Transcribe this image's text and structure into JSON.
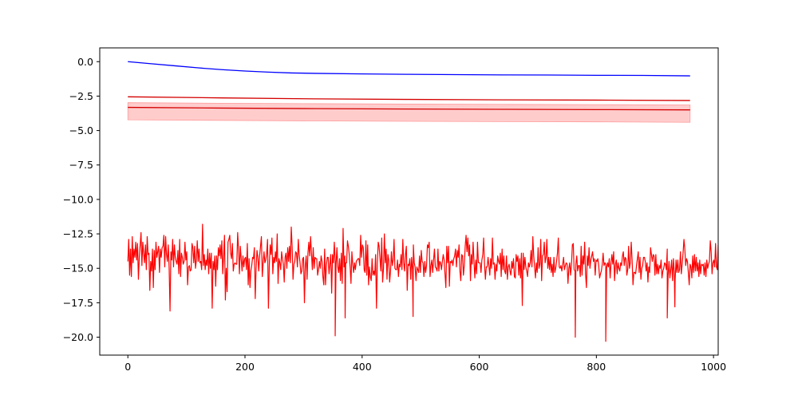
{
  "chart_data": {
    "type": "line",
    "title": "",
    "xlabel": "",
    "ylabel": "",
    "xlim": [
      -48,
      1008
    ],
    "ylim": [
      -21.3,
      1.0
    ],
    "x_ticks": [
      0,
      200,
      400,
      600,
      800,
      1000
    ],
    "x_tick_labels": [
      "0",
      "200",
      "400",
      "600",
      "800",
      "1000"
    ],
    "y_ticks": [
      0.0,
      -2.5,
      -5.0,
      -7.5,
      -10.0,
      -12.5,
      -15.0,
      -17.5,
      -20.0
    ],
    "y_tick_labels": [
      "0.0",
      "−2.5",
      "−5.0",
      "−7.5",
      "−10.0",
      "−12.5",
      "−15.0",
      "−17.5",
      "−20.0"
    ],
    "grid": false,
    "legend": "none",
    "series": [
      {
        "color": "#0000ff",
        "style": "line",
        "x": [
          0,
          40,
          80,
          120,
          160,
          200,
          240,
          280,
          320,
          400,
          480,
          560,
          640,
          720,
          800,
          880,
          960
        ],
        "y": [
          0.0,
          -0.15,
          -0.3,
          -0.45,
          -0.58,
          -0.68,
          -0.76,
          -0.82,
          -0.85,
          -0.89,
          -0.92,
          -0.94,
          -0.96,
          -0.97,
          -0.99,
          -1.0,
          -1.03
        ]
      },
      {
        "color": "#d40000",
        "style": "line",
        "x": [
          0,
          160,
          320,
          480,
          640,
          800,
          960
        ],
        "y": [
          -2.55,
          -2.63,
          -2.7,
          -2.74,
          -2.77,
          -2.79,
          -2.82
        ]
      },
      {
        "color": "#d40000",
        "style": "line-with-band",
        "band_color": "#ff9a9a",
        "x": [
          0,
          160,
          320,
          480,
          640,
          800,
          960
        ],
        "y": [
          -3.32,
          -3.37,
          -3.41,
          -3.44,
          -3.46,
          -3.48,
          -3.5
        ],
        "lower": [
          -4.22,
          -4.26,
          -4.3,
          -4.33,
          -4.35,
          -4.37,
          -4.4
        ],
        "upper": [
          -2.98,
          -3.02,
          -3.05,
          -3.08,
          -3.1,
          -3.12,
          -3.14
        ]
      },
      {
        "color": "#ff0000",
        "style": "noisy-line",
        "x_start": 0,
        "x_step": 1.5,
        "values": [
          -14.5,
          -12.9,
          -15.5,
          -13.6,
          -15.6,
          -12.7,
          -14.6,
          -13.6,
          -14.2,
          -13.1,
          -14.4,
          -13.2,
          -15.8,
          -14.2,
          -13.3,
          -12.4,
          -14.8,
          -13.1,
          -13.9,
          -14.6,
          -13.3,
          -15.1,
          -12.7,
          -14.0,
          -13.9,
          -16.6,
          -14.5,
          -15.2,
          -13.6,
          -16.4,
          -13.7,
          -15.1,
          -13.1,
          -14.2,
          -13.8,
          -13.4,
          -15.3,
          -13.6,
          -14.2,
          -13.5,
          -13.4,
          -12.6,
          -14.9,
          -12.7,
          -14.0,
          -14.5,
          -13.3,
          -15.0,
          -18.1,
          -13.8,
          -14.4,
          -12.9,
          -14.9,
          -13.3,
          -14.2,
          -14.5,
          -14.7,
          -13.7,
          -15.4,
          -12.9,
          -15.6,
          -13.9,
          -14.2,
          -14.7,
          -14.5,
          -13.1,
          -14.4,
          -13.8,
          -16.2,
          -14.9,
          -14.8,
          -15.2,
          -15.1,
          -13.2,
          -13.5,
          -14.6,
          -13.4,
          -15.0,
          -14.4,
          -13.0,
          -14.5,
          -13.6,
          -14.6,
          -14.5,
          -15.1,
          -11.8,
          -14.8,
          -14.0,
          -15.1,
          -14.4,
          -14.8,
          -13.6,
          -15.4,
          -13.9,
          -15.0,
          -13.9,
          -17.9,
          -14.5,
          -15.1,
          -14.1,
          -16.3,
          -14.1,
          -15.1,
          -13.5,
          -14.1,
          -13.3,
          -14.3,
          -13.0,
          -15.4,
          -14.1,
          -12.6,
          -17.3,
          -15.0,
          -16.7,
          -13.1,
          -12.9,
          -12.6,
          -13.9,
          -14.3,
          -13.2,
          -15.2,
          -14.7,
          -14.6,
          -14.7,
          -14.7,
          -12.4,
          -13.6,
          -15.4,
          -13.4,
          -14.3,
          -15.2,
          -14.1,
          -14.9,
          -14.3,
          -14.2,
          -15.1,
          -13.2,
          -16.2,
          -14.3,
          -16.4,
          -15.2,
          -14.8,
          -14.2,
          -14.3,
          -13.5,
          -17.2,
          -15.0,
          -13.7,
          -14.2,
          -15.2,
          -14.1,
          -13.4,
          -12.7,
          -15.6,
          -14.6,
          -13.8,
          -14.6,
          -14.4,
          -13.9,
          -12.9,
          -17.9,
          -14.8,
          -13.3,
          -14.0,
          -12.8,
          -15.4,
          -14.2,
          -14.6,
          -13.8,
          -14.5,
          -12.5,
          -16.1,
          -14.3,
          -14.6,
          -15.1,
          -13.8,
          -14.3,
          -14.7,
          -16.0,
          -14.2,
          -13.9,
          -15.0,
          -13.5,
          -14.5,
          -13.4,
          -14.6,
          -12.0,
          -13.4,
          -15.8,
          -14.7,
          -14.5,
          -13.8,
          -13.9,
          -14.9,
          -12.9,
          -14.0,
          -14.6,
          -15.4,
          -15.2,
          -14.3,
          -14.2,
          -17.5,
          -14.8,
          -14.1,
          -15.8,
          -13.9,
          -13.1,
          -14.1,
          -12.7,
          -13.9,
          -15.1,
          -13.5,
          -15.0,
          -14.2,
          -14.3,
          -14.3,
          -15.5,
          -15.1,
          -14.5,
          -15.0,
          -14.1,
          -14.5,
          -15.6,
          -16.2,
          -13.6,
          -16.2,
          -14.8,
          -14.2,
          -14.2,
          -15.4,
          -14.7,
          -14.0,
          -16.8,
          -14.0,
          -14.6,
          -13.1,
          -14.5,
          -14.7,
          -13.5,
          -14.9,
          -15.3,
          -14.3,
          -15.9,
          -13.9,
          -16.1,
          -12.1,
          -14.9,
          -14.1,
          -14.6,
          -14.6,
          -13.0,
          -13.4,
          -14.0,
          -14.9,
          -16.1,
          -13.8,
          -14.7,
          -15.3,
          -14.6,
          -15.1,
          -14.5,
          -14.4,
          -14.3,
          -14.3,
          -14.8,
          -12.6,
          -14.2,
          -13.3,
          -13.5,
          -15.1,
          -15.3,
          -13.0,
          -15.5,
          -13.3,
          -16.2,
          -14.9,
          -15.6,
          -15.9,
          -14.3,
          -15.5,
          -15.2,
          -15.5,
          -14.0,
          -17.9,
          -14.6,
          -13.1,
          -13.4,
          -14.3,
          -15.2,
          -12.8,
          -16.0,
          -15.0,
          -12.5,
          -14.6,
          -13.6,
          -15.8,
          -14.0,
          -14.4,
          -16.0,
          -15.2,
          -13.8,
          -14.8,
          -14.4,
          -12.9,
          -15.0,
          -15.1,
          -15.1,
          -14.4,
          -15.6,
          -14.7,
          -14.9,
          -14.0,
          -15.1,
          -12.9,
          -14.6,
          -15.2,
          -14.0,
          -13.4,
          -16.6,
          -14.7,
          -14.8,
          -14.3,
          -15.8,
          -14.2,
          -15.1,
          -13.3,
          -14.6,
          -14.9,
          -15.9,
          -14.9,
          -15.1,
          -15.3,
          -14.1,
          -15.3,
          -13.7,
          -14.5,
          -14.6,
          -15.6,
          -14.5,
          -15.3,
          -14.8,
          -13.3,
          -13.5,
          -13.1,
          -15.6,
          -14.8,
          -14.4,
          -15.3,
          -14.4,
          -13.6,
          -14.9,
          -15.0,
          -15.2,
          -13.6,
          -15.2,
          -14.5,
          -14.6,
          -15.1,
          -14.5,
          -14.0,
          -14.4,
          -15.4,
          -16.4,
          -13.4,
          -14.6,
          -13.4,
          -16.3,
          -14.5,
          -14.6,
          -14.4,
          -14.8,
          -14.3,
          -14.1,
          -13.6,
          -14.9,
          -13.7,
          -14.2,
          -13.3,
          -15.2,
          -15.9,
          -14.0,
          -14.1,
          -15.5,
          -14.8,
          -13.4,
          -12.6,
          -13.8,
          -12.8,
          -14.1,
          -13.3,
          -15.9,
          -14.0,
          -14.7,
          -13.1,
          -14.5,
          -15.7,
          -14.4,
          -15.4,
          -13.1,
          -14.6,
          -14.6,
          -14.6,
          -15.3,
          -14.4,
          -14.0,
          -12.8,
          -14.7,
          -15.8,
          -14.9,
          -14.9,
          -14.2,
          -14.8,
          -15.5,
          -14.3,
          -15.0,
          -12.8,
          -14.7,
          -14.6,
          -15.8,
          -14.7,
          -15.2,
          -14.1,
          -14.5,
          -14.7,
          -13.9,
          -15.6,
          -13.6,
          -15.1,
          -14.1,
          -15.2,
          -15.4,
          -14.1,
          -15.8,
          -14.9,
          -14.7,
          -15.2,
          -15.5,
          -14.5,
          -15.0,
          -14.3,
          -15.6,
          -15.7,
          -14.0,
          -14.5,
          -14.1,
          -15.5,
          -14.3,
          -15.7,
          -13.9,
          -17.7,
          -13.9,
          -15.1,
          -14.2,
          -14.9,
          -15.2,
          -15.6,
          -14.6,
          -14.9,
          -14.6,
          -13.7,
          -14.9,
          -12.7,
          -14.1,
          -14.9,
          -15.7,
          -14.6,
          -15.3,
          -13.5,
          -15.0,
          -14.7,
          -12.9,
          -15.9,
          -14.1,
          -14.0,
          -13.1,
          -14.6,
          -14.2,
          -12.9,
          -15.0,
          -14.2,
          -15.1,
          -14.2,
          -15.3,
          -14.7,
          -15.6,
          -14.2,
          -15.3,
          -15.0,
          -14.5,
          -13.9,
          -12.8,
          -14.9,
          -15.0,
          -14.8,
          -15.2,
          -14.7,
          -14.2,
          -15.1,
          -14.8,
          -14.6,
          -14.7,
          -16.1,
          -15.0,
          -14.6,
          -15.5,
          -14.7,
          -13.3,
          -13.2,
          -15.1,
          -15.2,
          -14.7,
          -14.1,
          -15.2,
          -14.8,
          -14.8,
          -15.6,
          -13.4,
          -15.5,
          -14.1,
          -14.7,
          -13.1,
          -15.4,
          -16.4,
          -14.1,
          -14.8,
          -13.5,
          -15.0,
          -14.4,
          -14.1,
          -13.8,
          -14.5,
          -14.3,
          -15.5,
          -14.4,
          -14.5,
          -14.3,
          -14.8,
          -15.7,
          -15.4,
          -15.2,
          -14.7,
          -13.9,
          -14.8,
          -14.6,
          -14.7,
          -15.0,
          -14.6,
          -14.9,
          -14.3,
          -15.7,
          -14.6,
          -14.0,
          -14.7,
          -13.8,
          -15.9,
          -14.7,
          -14.4,
          -15.4,
          -14.6,
          -15.0,
          -15.2,
          -14.6,
          -14.8,
          -14.1,
          -13.8,
          -14.8,
          -14.2,
          -14.3,
          -15.5,
          -15.1,
          -13.4,
          -15.0,
          -14.6,
          -13.1,
          -14.4,
          -16.2,
          -15.3,
          -15.3,
          -15.4,
          -14.8,
          -14.3,
          -13.8,
          -15.3,
          -14.2,
          -15.8,
          -15.0,
          -14.8,
          -14.2,
          -14.2,
          -14.5,
          -15.2,
          -14.6,
          -16.0,
          -14.9,
          -15.3,
          -13.5,
          -14.0,
          -14.5,
          -14.0,
          -14.1,
          -15.5,
          -14.0,
          -15.4,
          -14.7,
          -15.4,
          -14.8,
          -15.0,
          -14.4,
          -15.7,
          -15.2,
          -15.0,
          -14.6,
          -14.7,
          -15.1,
          -13.6,
          -15.5,
          -14.5,
          -15.7,
          -15.1,
          -14.4,
          -15.9,
          -14.3,
          -15.3,
          -15.8,
          -14.4,
          -15.3,
          -14.4,
          -15.3,
          -15.1,
          -13.8,
          -15.4,
          -14.7,
          -13.9,
          -12.9,
          -13.6,
          -14.8,
          -14.3,
          -14.5,
          -15.3,
          -16.2,
          -14.7,
          -14.9,
          -15.7,
          -14.1,
          -15.3,
          -14.0,
          -15.2,
          -14.2,
          -15.2,
          -14.6,
          -15.6,
          -14.4,
          -15.4,
          -14.7,
          -14.8,
          -14.7,
          -15.5,
          -14.6,
          -15.6,
          -14.4,
          -15.0,
          -14.7,
          -14.5,
          -13.0,
          -13.8,
          -15.4,
          -14.6,
          -14.4,
          -14.9,
          -13.2,
          -14.9,
          -15.1,
          -13.3,
          -15.8,
          -13.9,
          -14.7,
          -15.1,
          -14.9,
          -15.5,
          -15.2,
          -14.7,
          -14.6,
          -14.6,
          -15.2,
          -15.0,
          -14.7,
          -15.1,
          -14.7,
          -14.7,
          -14.0,
          -15.9,
          -14.5,
          -14.2,
          -14.3,
          -15.2,
          -13.9,
          -15.2,
          -15.6,
          -14.1,
          -15.6,
          -14.3,
          -14.9,
          -15.2,
          -14.8,
          -14.4,
          -14.2,
          -15.8,
          -13.7,
          -14.9,
          -13.9,
          -15.2,
          -15.5,
          -15.3,
          -15.1,
          -14.1,
          -14.3,
          -14.8,
          -15.3,
          -15.2,
          -15.9,
          -14.6,
          -15.5,
          -15.6,
          -13.9,
          -13.8,
          -15.7,
          -14.6,
          -15.3,
          -14.5,
          -15.8,
          -14.5,
          -14.4,
          -14.3,
          -14.8,
          -15.2,
          -14.2,
          -15.2,
          -14.9,
          -16.0,
          -13.8,
          -15.1,
          -14.8,
          -15.0,
          -14.8,
          -15.0,
          -16.0,
          -15.7,
          -14.3,
          -15.5,
          -14.2,
          -15.3,
          -13.9,
          -14.0,
          -15.6,
          -13.9,
          -15.0,
          -13.5,
          -14.5,
          -15.5,
          -14.8,
          -15.0,
          -14.9,
          -14.6,
          -15.7,
          -16.7,
          -13.6,
          -14.4,
          -14.0,
          -15.1,
          -15.4,
          -16.5,
          -14.8,
          -14.9,
          -14.0,
          -14.8,
          -15.3,
          -13.8,
          -14.1,
          -16.0,
          -14.2,
          -14.9,
          -14.9,
          -14.2,
          -15.0,
          -13.4,
          -15.4,
          -15.7,
          -15.3,
          -14.8,
          -15.2,
          -14.0,
          -15.7,
          -13.5,
          -14.0,
          -13.8,
          -14.9,
          -16.5,
          -14.8,
          -15.1,
          -13.9,
          -14.7,
          -14.1,
          -15.8,
          -14.7,
          -14.7,
          -14.9,
          -14.2,
          -14.1,
          -15.7,
          -14.4,
          -14.2,
          -15.5,
          -14.8,
          -15.4,
          -14.9,
          -15.2,
          -14.7,
          -14.5,
          -14.6,
          -14.1,
          -14.2,
          -14.7,
          -13.8,
          -13.7,
          -14.0,
          -15.3,
          -14.9,
          -15.1,
          -14.4,
          -14.8,
          -14.6,
          -14.7,
          -14.6,
          -15.2,
          -14.8,
          -13.5,
          -15.2,
          -14.3,
          -15.7,
          -14.7,
          -15.0,
          -16.6,
          -15.0,
          -14.6,
          -14.9,
          -14.4,
          -13.6,
          -14.0,
          -15.2,
          -15.2,
          -14.5,
          -14.6,
          -14.8,
          -14.8,
          -13.5,
          -15.7,
          -15.3,
          -15.0,
          -14.9,
          -14.1,
          -13.5,
          -15.7,
          -14.7,
          -16.0,
          -16.2,
          -15.0,
          -15.9,
          -16.4,
          -14.2,
          -15.0,
          -15.5,
          -14.9,
          -13.8,
          -14.2,
          -13.1,
          -13.7,
          -15.0,
          -15.2,
          -15.1,
          -14.8,
          -14.8,
          -14.7,
          -16.1,
          -14.3,
          -15.2,
          -14.8,
          -14.7,
          -15.2,
          -14.4,
          -14.6,
          -14.4,
          -14.7,
          -14.6,
          -14.3,
          -14.0,
          -16.2,
          -14.5,
          -14.3,
          -15.1,
          -14.4,
          -14.2,
          -16.2,
          -13.9,
          -14.1,
          -15.0,
          -14.2,
          -13.8,
          -14.7,
          -15.5,
          -13.3,
          -14.8,
          -14.6,
          -14.2,
          -13.8,
          -15.3,
          -14.6,
          -12.1,
          -13.4,
          -14.3,
          -13.0,
          -14.6,
          -13.8,
          -15.1,
          -14.3,
          -13.0,
          -14.3,
          -14.6,
          -16.1,
          -14.2,
          -14.2,
          -15.9,
          -14.5,
          -12.1,
          -12.7,
          -13.7,
          -13.5,
          -14.4,
          -14.1,
          -13.2,
          -14.3,
          -12.6,
          -12.8,
          -13.4,
          -14.0,
          -13.5,
          -13.4,
          -14.1,
          -12.8
        ],
        "spikes": [
          {
            "x": 354,
            "y": -19.9
          },
          {
            "x": 371,
            "y": -18.6
          },
          {
            "x": 487,
            "y": -18.5
          },
          {
            "x": 764,
            "y": -20.0
          },
          {
            "x": 816,
            "y": -20.3
          },
          {
            "x": 921,
            "y": -18.6
          },
          {
            "x": 934,
            "y": -17.8
          }
        ]
      }
    ]
  }
}
